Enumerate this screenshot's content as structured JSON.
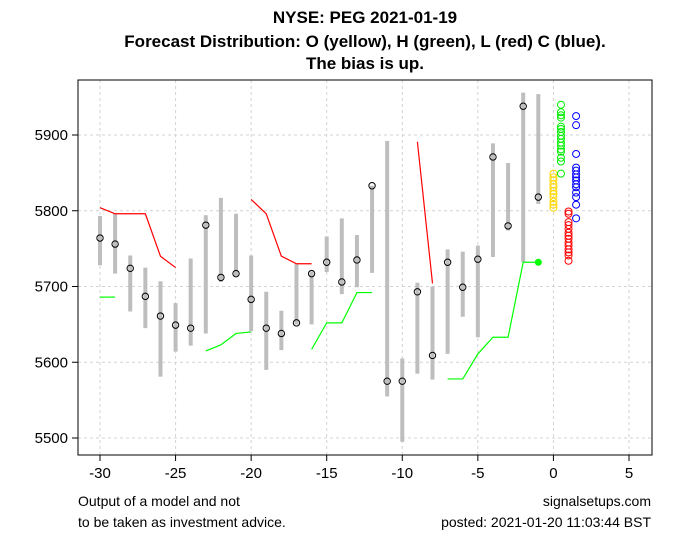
{
  "chart_data": {
    "type": "scatter",
    "title": [
      "NYSE: PEG 2021-01-19",
      "Forecast Distribution: O (yellow), H (green), L (red) C (blue).",
      "The bias is up."
    ],
    "xlim": [
      -31.5,
      6.5
    ],
    "ylim": [
      5472,
      5967
    ],
    "xticks": [
      -30,
      -25,
      -20,
      -15,
      -10,
      -5,
      0,
      5
    ],
    "yticks": [
      5500,
      5600,
      5700,
      5800,
      5900
    ],
    "grid": true,
    "colors": {
      "range": "#bebebe",
      "close": "#000000",
      "upper": "#ff0000",
      "lower": "#00ff00",
      "open": "#ffd700",
      "high": "#00ee00",
      "low": "#ff0000",
      "closeDist": "#0000ff"
    },
    "history": {
      "x": [
        -30,
        -29,
        -28,
        -27,
        -26,
        -25,
        -24,
        -23,
        -22,
        -21,
        -20,
        -19,
        -18,
        -17,
        -16,
        -15,
        -14,
        -13,
        -12,
        -11,
        -10,
        -9,
        -8,
        -7,
        -6,
        -5,
        -4,
        -3,
        -2,
        -1
      ],
      "high": [
        5793,
        5796,
        5741,
        5725,
        5707,
        5678,
        5737,
        5794,
        5817,
        5796,
        5741,
        5693,
        5668,
        5730,
        5720,
        5766,
        5790,
        5768,
        5833,
        5892,
        5605,
        5705,
        5700,
        5749,
        5746,
        5754,
        5889,
        5863,
        5956,
        5954
      ],
      "low": [
        5728,
        5717,
        5667,
        5645,
        5581,
        5614,
        5622,
        5638,
        5706,
        5714,
        5641,
        5590,
        5616,
        5650,
        5650,
        5719,
        5690,
        5699,
        5718,
        5555,
        5495,
        5585,
        5577,
        5611,
        5660,
        5633,
        5739,
        5774,
        5732,
        5809
      ],
      "close": [
        5764,
        5756,
        5724,
        5687,
        5661,
        5649,
        5645,
        5781,
        5712,
        5717,
        5683,
        5645,
        5638,
        5652,
        5717,
        5732,
        5706,
        5735,
        5833,
        5575,
        5575,
        5693,
        5609,
        5732,
        5699,
        5736,
        5871,
        5780,
        5938,
        5818
      ]
    },
    "upper_lines": [
      [
        [
          -30,
          5804
        ],
        [
          -29,
          5796
        ],
        [
          -28,
          5796
        ],
        [
          -27,
          5796
        ],
        [
          -26,
          5740
        ],
        [
          -25,
          5725
        ]
      ],
      [
        [
          -20,
          5815
        ],
        [
          -19,
          5796
        ],
        [
          -18,
          5740
        ],
        [
          -17,
          5730
        ],
        [
          -16,
          5730
        ]
      ],
      [
        [
          -9,
          5891
        ],
        [
          -8,
          5704
        ]
      ]
    ],
    "lower_lines": [
      [
        [
          -30,
          5686
        ],
        [
          -29,
          5686
        ]
      ],
      [
        [
          -23,
          5615
        ],
        [
          -22,
          5623
        ],
        [
          -21,
          5638
        ],
        [
          -20,
          5640
        ]
      ],
      [
        [
          -16,
          5617
        ],
        [
          -15,
          5652
        ],
        [
          -14,
          5652
        ],
        [
          -13,
          5692
        ],
        [
          -12,
          5692
        ]
      ],
      [
        [
          -7,
          5578
        ],
        [
          -6,
          5578
        ],
        [
          -5,
          5611
        ],
        [
          -4,
          5633
        ],
        [
          -3,
          5633
        ],
        [
          -2,
          5732
        ],
        [
          -1,
          5732
        ]
      ]
    ],
    "last_point": [
      -1,
      5732
    ],
    "forecast": {
      "open": {
        "x": 0,
        "values": [
          5849,
          5844,
          5840,
          5835,
          5831,
          5826,
          5822,
          5818,
          5812,
          5808,
          5804
        ]
      },
      "high": {
        "x": 0.5,
        "values": [
          5940,
          5930,
          5926,
          5923,
          5911,
          5908,
          5904,
          5899,
          5895,
          5890,
          5886,
          5881,
          5878,
          5870,
          5865,
          5849
        ]
      },
      "low": {
        "x": 1,
        "values": [
          5799,
          5796,
          5785,
          5781,
          5776,
          5771,
          5767,
          5763,
          5758,
          5754,
          5749,
          5745,
          5741,
          5734
        ]
      },
      "close": {
        "x": 1.5,
        "values": [
          5925,
          5913,
          5875,
          5857,
          5853,
          5848,
          5844,
          5840,
          5835,
          5831,
          5824,
          5818,
          5808,
          5790
        ]
      }
    }
  },
  "footer": {
    "left1": "Output of a model and not",
    "left2": "to be taken as investment advice.",
    "right1": "signalsetups.com",
    "right2": "posted: 2021-01-20 11:03:44 BST"
  }
}
